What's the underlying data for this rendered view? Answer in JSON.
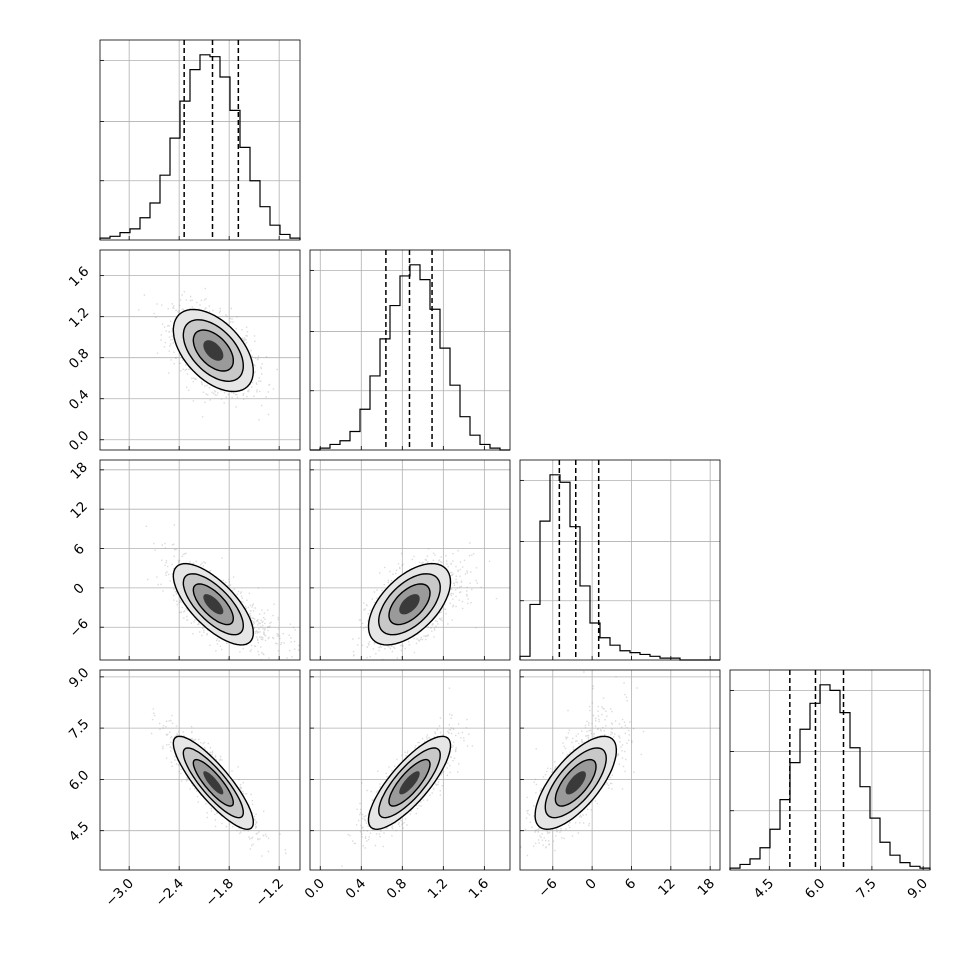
{
  "chart_data": {
    "type": "corner",
    "grid": true,
    "colors": {
      "line": "#000000",
      "points": "#999999",
      "fill_light": "#e6e6e6",
      "fill_mid": "#9a9a9a",
      "fill_dark": "#3a3a3a",
      "grid": "#b0b0b0"
    },
    "params": [
      {
        "range": [
          -3.35,
          -0.95
        ],
        "ticks": [
          -3.0,
          -2.4,
          -1.8,
          -1.2
        ],
        "tick_labels": [
          "−3.0",
          "−2.4",
          "−1.8",
          "−1.2"
        ],
        "mean": -1.99,
        "sd": 0.24,
        "quantiles": [
          -2.34,
          -2.0,
          -1.69
        ]
      },
      {
        "range": [
          -0.1,
          1.85
        ],
        "ticks": [
          0.0,
          0.4,
          0.8,
          1.2,
          1.6
        ],
        "tick_labels": [
          "0.0",
          "0.4",
          "0.8",
          "1.2",
          "1.6"
        ],
        "mean": 0.87,
        "sd": 0.2,
        "quantiles": [
          0.64,
          0.87,
          1.09
        ]
      },
      {
        "range": [
          -11.0,
          19.5
        ],
        "ticks": [
          -6,
          0,
          6,
          12,
          18
        ],
        "tick_labels": [
          "−6",
          "0",
          "6",
          "12",
          "18"
        ],
        "mean": -2.5,
        "sd": 3.1,
        "quantiles": [
          -5.0,
          -2.5,
          1.0
        ]
      },
      {
        "range": [
          3.35,
          9.2
        ],
        "ticks": [
          4.5,
          6.0,
          7.5,
          9.0
        ],
        "tick_labels": [
          "4.5",
          "6.0",
          "7.5",
          "9.0"
        ],
        "mean": 5.9,
        "sd": 0.68,
        "quantiles": [
          5.1,
          5.85,
          6.67
        ]
      }
    ],
    "histograms": [
      {
        "param": 0,
        "bins": 20,
        "counts": [
          1,
          2,
          4,
          6,
          12,
          20,
          35,
          55,
          75,
          92,
          100,
          99,
          88,
          70,
          50,
          32,
          18,
          8,
          3,
          1
        ]
      },
      {
        "param": 1,
        "bins": 20,
        "counts": [
          0,
          1,
          3,
          5,
          10,
          22,
          40,
          60,
          78,
          94,
          100,
          92,
          76,
          55,
          35,
          18,
          8,
          3,
          1,
          0
        ]
      },
      {
        "param": 2,
        "bins": 20,
        "counts": [
          2,
          30,
          75,
          100,
          96,
          72,
          40,
          20,
          12,
          8,
          5,
          4,
          3,
          2,
          1,
          1,
          0,
          0,
          0,
          0
        ]
      },
      {
        "param": 3,
        "bins": 20,
        "counts": [
          1,
          3,
          6,
          12,
          22,
          38,
          58,
          76,
          90,
          100,
          97,
          85,
          66,
          45,
          28,
          15,
          8,
          4,
          2,
          1
        ]
      }
    ],
    "pairs": [
      {
        "x": 0,
        "y": 1,
        "corr": -0.5
      },
      {
        "x": 0,
        "y": 2,
        "corr": -0.7,
        "skew_x": 0.25
      },
      {
        "x": 1,
        "y": 2,
        "corr": 0.55,
        "skew_x": 0.1
      },
      {
        "x": 0,
        "y": 3,
        "corr": -0.85
      },
      {
        "x": 1,
        "y": 3,
        "corr": 0.8
      },
      {
        "x": 2,
        "y": 3,
        "corr": 0.7,
        "skew_y": 0.25
      }
    ]
  }
}
